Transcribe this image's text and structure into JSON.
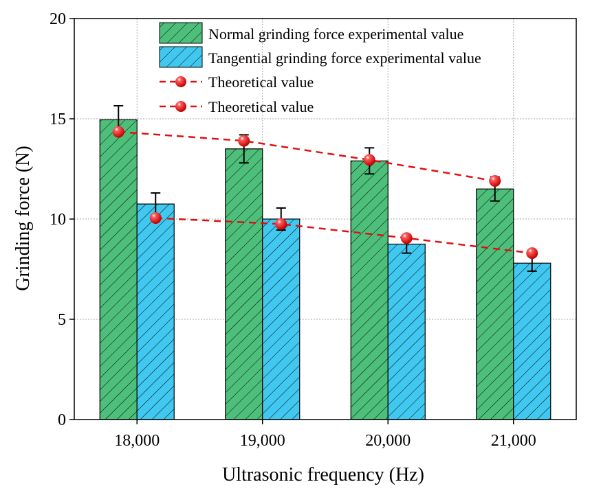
{
  "chart_data": {
    "type": "bar",
    "title": "",
    "xlabel": "Ultrasonic frequency (Hz)",
    "ylabel": "Grinding force (N)",
    "ylim": [
      0,
      20
    ],
    "yticks": [
      "0",
      "5",
      "10",
      "15",
      "20"
    ],
    "grid": true,
    "legend_position": "top-right",
    "categories": [
      "18,000",
      "19,000",
      "20,000",
      "21,000"
    ],
    "series": [
      {
        "name": "Normal grinding force experimental value",
        "kind": "bar",
        "color": "#4dbf7a",
        "values": [
          14.95,
          13.5,
          12.9,
          11.5
        ],
        "error": [
          0.7,
          0.7,
          0.65,
          0.6
        ]
      },
      {
        "name": "Tangential grinding force experimental value",
        "kind": "bar",
        "color": "#41c8f0",
        "values": [
          10.75,
          10.0,
          8.75,
          7.8
        ],
        "error": [
          0.55,
          0.55,
          0.45,
          0.4
        ]
      },
      {
        "name": "Theoretical value",
        "kind": "line",
        "color": "#e01010",
        "values": [
          14.35,
          13.9,
          12.95,
          11.9
        ]
      },
      {
        "name": "Theoretical value",
        "kind": "line",
        "color": "#e01010",
        "values": [
          10.05,
          9.75,
          9.05,
          8.3
        ]
      }
    ]
  }
}
